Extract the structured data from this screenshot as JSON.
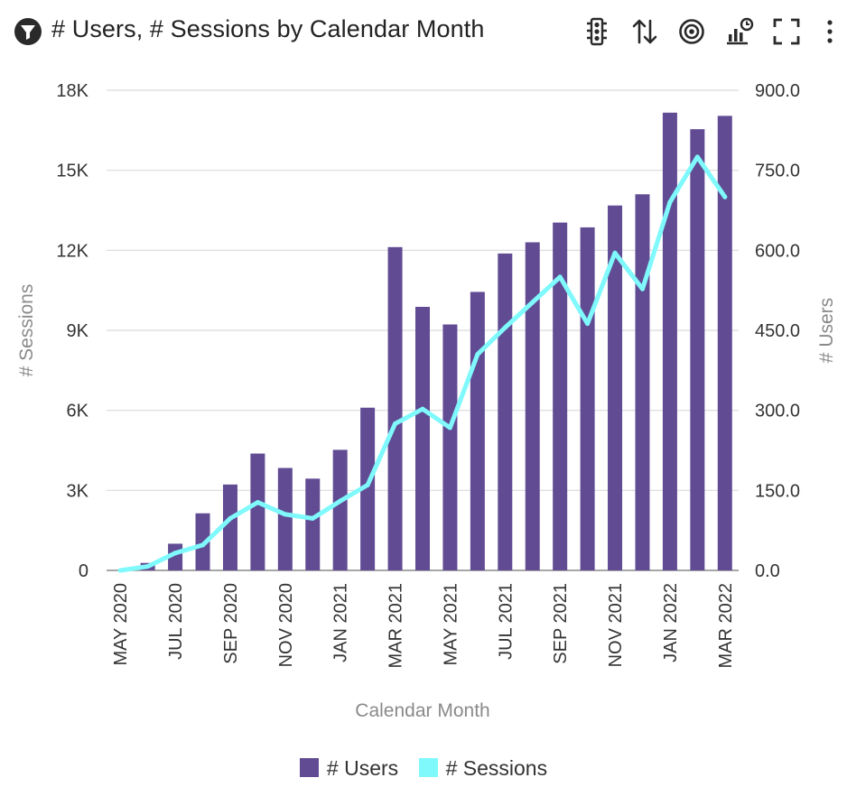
{
  "header": {
    "title": "# Users, # Sessions by Calendar Month",
    "icons": [
      "filter-icon",
      "traffic-light-icon",
      "sort-icon",
      "target-icon",
      "chart-timer-icon",
      "fullscreen-icon",
      "more-vertical-icon"
    ]
  },
  "colors": {
    "users": "#614c94",
    "sessions": "#7ff9fb",
    "grid": "#d9d9de",
    "axis": "#8a8a8a"
  },
  "chart_data": {
    "type": "bar",
    "title": "# Users, # Sessions by Calendar Month",
    "xlabel": "Calendar Month",
    "ylabel_left": "# Sessions",
    "ylabel_right": "# Users",
    "categories": [
      "MAY 2020",
      "JUN 2020",
      "JUL 2020",
      "AUG 2020",
      "SEP 2020",
      "OCT 2020",
      "NOV 2020",
      "DEC 2020",
      "JAN 2021",
      "FEB 2021",
      "MAR 2021",
      "APR 2021",
      "MAY 2021",
      "JUN 2021",
      "JUL 2021",
      "AUG 2021",
      "SEP 2021",
      "OCT 2021",
      "NOV 2021",
      "DEC 2021",
      "JAN 2022",
      "FEB 2022",
      "MAR 2022"
    ],
    "x_tick_labels": [
      "MAY 2020",
      "JUL 2020",
      "SEP 2020",
      "NOV 2020",
      "JAN 2021",
      "MAR 2021",
      "MAY 2021",
      "JUL 2021",
      "SEP 2021",
      "NOV 2021",
      "JAN 2022",
      "MAR 2022"
    ],
    "left_axis": {
      "ylim": [
        0,
        18000
      ],
      "ticks": [
        0,
        3000,
        6000,
        9000,
        12000,
        15000,
        18000
      ],
      "tick_labels": [
        "0",
        "3K",
        "6K",
        "9K",
        "12K",
        "15K",
        "18K"
      ]
    },
    "right_axis": {
      "ylim": [
        0,
        900
      ],
      "ticks": [
        0,
        150,
        300,
        450,
        600,
        750,
        900
      ],
      "tick_labels": [
        "0.0",
        "150.0",
        "300.0",
        "450.0",
        "600.0",
        "750.0",
        "900.0"
      ]
    },
    "grid": true,
    "legend_position": "bottom",
    "series": [
      {
        "name": "# Users",
        "type": "bar",
        "axis": "right",
        "values": [
          0,
          14,
          50,
          107,
          161,
          219,
          192,
          172,
          226,
          305,
          606,
          494,
          461,
          522,
          594,
          615,
          652,
          643,
          684,
          705,
          858,
          827,
          852
        ]
      },
      {
        "name": "# Sessions",
        "type": "line",
        "axis": "left",
        "values": [
          0,
          150,
          650,
          950,
          1950,
          2550,
          2100,
          1950,
          2600,
          3200,
          5500,
          6050,
          5350,
          8100,
          9100,
          10050,
          11000,
          9250,
          11900,
          10550,
          13800,
          15500,
          14000
        ]
      }
    ]
  }
}
